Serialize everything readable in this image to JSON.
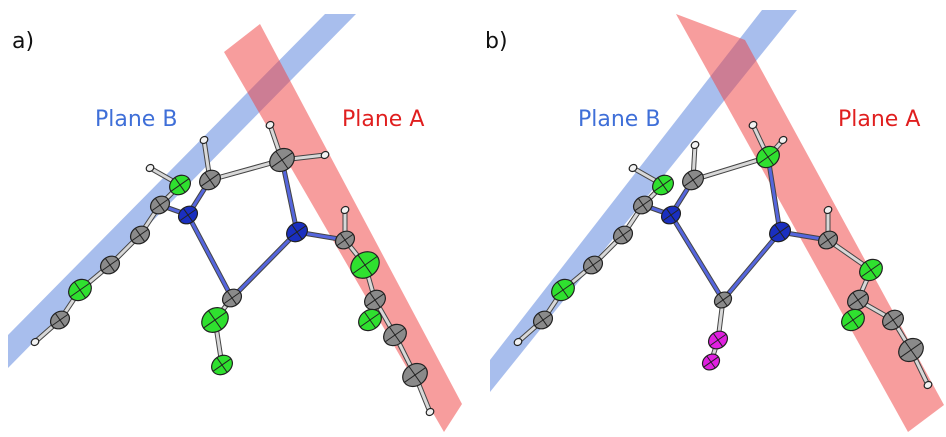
{
  "panels": [
    {
      "label": "a)",
      "planes": [
        {
          "label": "Plane B"
        },
        {
          "label": "Plane A"
        }
      ]
    },
    {
      "label": "b)",
      "planes": [
        {
          "label": "Plane B"
        },
        {
          "label": "Plane A"
        }
      ]
    }
  ]
}
